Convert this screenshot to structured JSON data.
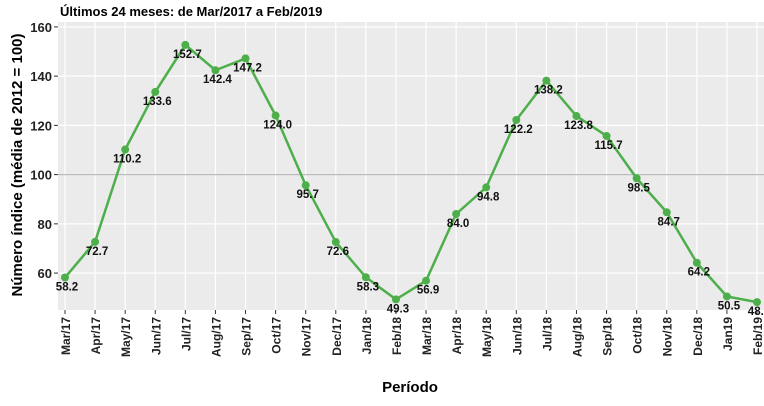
{
  "chart_data": {
    "type": "line",
    "subtitle": "Últimos 24 meses: de Mar/2017 a Feb/2019",
    "x_label": "Período",
    "y_label": "Número índice (média de 2012 = 100)",
    "categories": [
      "Mar/17",
      "Apr/17",
      "May/17",
      "Jun/17",
      "Jul/17",
      "Aug/17",
      "Sep/17",
      "Oct/17",
      "Nov/17",
      "Dec/17",
      "Jan/18",
      "Feb/18",
      "Mar/18",
      "Apr/18",
      "May/18",
      "Jun/18",
      "Jul/18",
      "Aug/18",
      "Sep/18",
      "Oct/18",
      "Nov/18",
      "Dec/18",
      "Jan19",
      "Feb/19"
    ],
    "values": [
      58.2,
      72.7,
      110.2,
      133.6,
      152.7,
      142.4,
      147.2,
      124.0,
      95.7,
      72.6,
      58.3,
      49.3,
      56.9,
      84.0,
      94.8,
      122.2,
      138.2,
      123.8,
      115.7,
      98.5,
      84.7,
      64.2,
      50.5,
      48.2
    ],
    "value_labels": [
      "58.2",
      "72.7",
      "110.2",
      "133.6",
      "152.7",
      "142.4",
      "147.2",
      "124.0",
      "95.7",
      "72.6",
      "58.3",
      "49.3",
      "56.9",
      "84.0",
      "94.8",
      "122.2",
      "138.2",
      "123.8",
      "115.7",
      "98.5",
      "84.7",
      "64.2",
      "50.5",
      "48.2"
    ],
    "color": "#4daf4a",
    "reference_line": 100,
    "ylim": [
      45,
      162
    ],
    "yticks": [
      60,
      80,
      100,
      120,
      140,
      160
    ],
    "grid": true
  }
}
